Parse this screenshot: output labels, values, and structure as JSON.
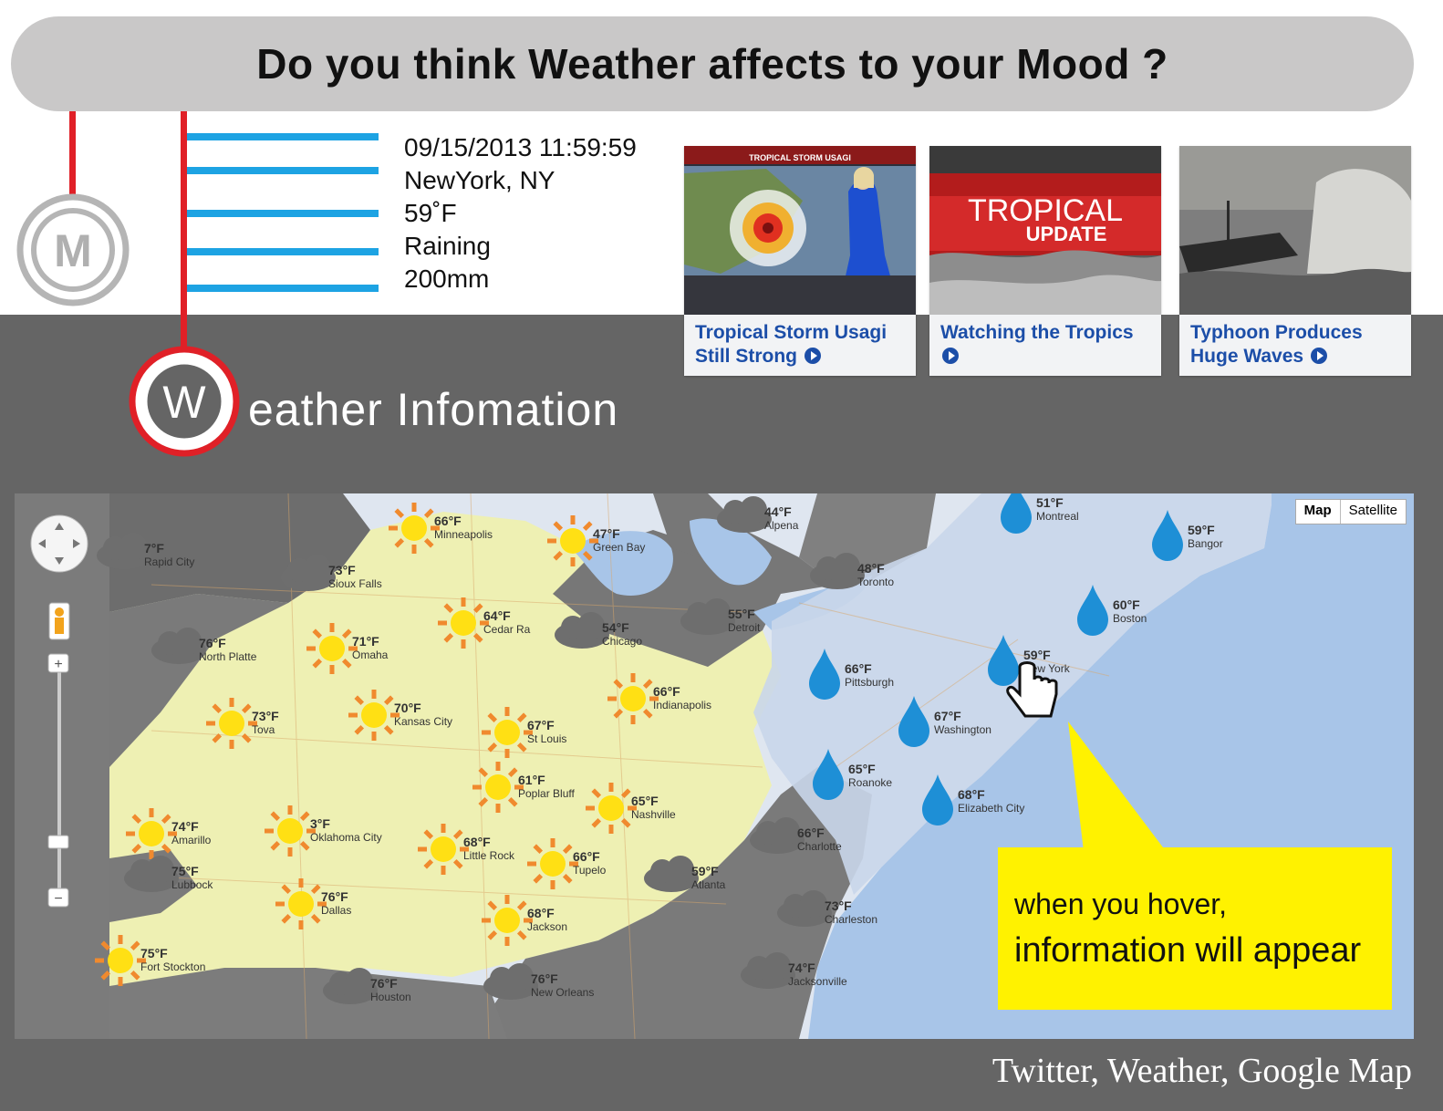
{
  "header": {
    "title": "Do you think Weather affects to your Mood ?"
  },
  "badges": {
    "m_letter": "M",
    "w_letter": "W"
  },
  "weather_info": {
    "datetime": "09/15/2013 11:59:59",
    "location": "NewYork, NY",
    "temperature": "59˚F",
    "condition": "Raining",
    "precipitation": "200mm"
  },
  "colors": {
    "accent_red": "#e02027",
    "bar_blue": "#1da3e3",
    "panel_gray": "#656565",
    "callout_yellow": "#fff200",
    "link_blue": "#1c4ea8"
  },
  "videos": [
    {
      "thumb_text": "TROPICAL STORM USAGI",
      "caption": "Tropical Storm Usagi Still Strong"
    },
    {
      "thumb_text_1": "TROPICAL",
      "thumb_text_2": "UPDATE",
      "caption": "Watching the Tropics"
    },
    {
      "caption": "Typhoon Produces Huge Waves"
    }
  ],
  "section": {
    "title_rest": "eather Infomation"
  },
  "map": {
    "toggle": {
      "map": "Map",
      "satellite": "Satellite"
    },
    "cities": [
      {
        "temp": "66°F",
        "name": "Minneapolis",
        "icon": "sun-icon"
      },
      {
        "temp": "47°F",
        "name": "Green Bay",
        "icon": "sun-icon"
      },
      {
        "temp": "44°F",
        "name": "Alpena",
        "icon": "cloud-icon"
      },
      {
        "temp": "48°F",
        "name": "Toronto",
        "icon": "cloud-icon"
      },
      {
        "temp": "51°F",
        "name": "Montreal",
        "icon": "raindrop-icon"
      },
      {
        "temp": "59°F",
        "name": "Bangor",
        "icon": "raindrop-icon"
      },
      {
        "temp": "7°F",
        "name": "Rapid City",
        "icon": "cloud-icon"
      },
      {
        "temp": "73°F",
        "name": "Sioux Falls",
        "icon": "cloud-icon"
      },
      {
        "temp": "64°F",
        "name": "Cedar Ra",
        "icon": "sun-icon"
      },
      {
        "temp": "54°F",
        "name": "Chicago",
        "icon": "cloud-icon"
      },
      {
        "temp": "55°F",
        "name": "Detroit",
        "icon": "cloud-icon"
      },
      {
        "temp": "60°F",
        "name": "Boston",
        "icon": "raindrop-icon"
      },
      {
        "temp": "76°F",
        "name": "North Platte",
        "icon": "cloud-icon"
      },
      {
        "temp": "71°F",
        "name": "Omaha",
        "icon": "sun-icon"
      },
      {
        "temp": "66°F",
        "name": "Pittsburgh",
        "icon": "raindrop-icon"
      },
      {
        "temp": "59°F",
        "name": "New York",
        "icon": "raindrop-icon"
      },
      {
        "temp": "66°F",
        "name": "Indianapolis",
        "icon": "sun-icon"
      },
      {
        "temp": "73°F",
        "name": "Tova",
        "icon": "sun-icon"
      },
      {
        "temp": "70°F",
        "name": "Kansas City",
        "icon": "sun-icon"
      },
      {
        "temp": "67°F",
        "name": "St Louis",
        "icon": "sun-icon"
      },
      {
        "temp": "67°F",
        "name": "Washington",
        "icon": "raindrop-icon"
      },
      {
        "temp": "61°F",
        "name": "Poplar Bluff",
        "icon": "sun-icon"
      },
      {
        "temp": "65°F",
        "name": "Nashville",
        "icon": "sun-icon"
      },
      {
        "temp": "65°F",
        "name": "Roanoke",
        "icon": "raindrop-icon"
      },
      {
        "temp": "68°F",
        "name": "Elizabeth City",
        "icon": "raindrop-icon"
      },
      {
        "temp": "74°F",
        "name": "Amarillo",
        "icon": "sun-icon"
      },
      {
        "temp": "3°F",
        "name": "Oklahoma City",
        "icon": "sun-icon"
      },
      {
        "temp": "68°F",
        "name": "Little Rock",
        "icon": "sun-icon"
      },
      {
        "temp": "66°F",
        "name": "Charlotte",
        "icon": "cloud-icon"
      },
      {
        "temp": "75°F",
        "name": "Lubbock",
        "icon": "cloud-icon"
      },
      {
        "temp": "66°F",
        "name": "Tupelo",
        "icon": "sun-icon"
      },
      {
        "temp": "59°F",
        "name": "Atlanta",
        "icon": "cloud-icon"
      },
      {
        "temp": "76°F",
        "name": "Dallas",
        "icon": "sun-icon"
      },
      {
        "temp": "73°F",
        "name": "Charleston",
        "icon": "cloud-icon"
      },
      {
        "temp": "68°F",
        "name": "Jackson",
        "icon": "sun-icon"
      },
      {
        "temp": "75°F",
        "name": "Fort Stockton",
        "icon": "sun-icon"
      },
      {
        "temp": "74°F",
        "name": "Jacksonville",
        "icon": "cloud-icon"
      },
      {
        "temp": "76°F",
        "name": "Houston",
        "icon": "cloud-icon"
      },
      {
        "temp": "76°F",
        "name": "New Orleans",
        "icon": "cloud-icon"
      }
    ]
  },
  "callout": {
    "line1": "when you hover,",
    "line2": "information will appear"
  },
  "footer": {
    "sources": "Twitter,  Weather,  Google Map"
  }
}
